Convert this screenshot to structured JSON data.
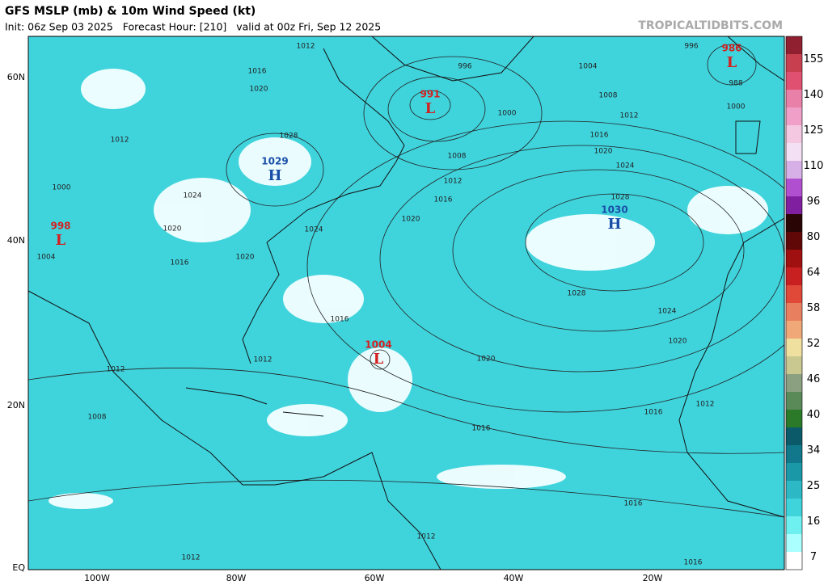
{
  "header": {
    "title": "GFS MSLP (mb) & 10m Wind Speed (kt)",
    "subtitle": "Init: 06z Sep 03 2025   Forecast Hour: [210]   valid at 00z Fri, Sep 12 2025",
    "watermark": "TROPICALTIDBITS.COM"
  },
  "map": {
    "pressure_centers": [
      {
        "symbol": "L",
        "value": "986"
      },
      {
        "symbol": "L",
        "value": "991"
      },
      {
        "symbol": "H",
        "value": "1029"
      },
      {
        "symbol": "H",
        "value": "1030"
      },
      {
        "symbol": "L",
        "value": "998"
      },
      {
        "symbol": "L",
        "value": "1004"
      }
    ],
    "isobar_labels": [
      "1012",
      "996",
      "1004",
      "1008",
      "1000",
      "1012",
      "1016",
      "1020",
      "1024",
      "1028",
      "1016",
      "1012",
      "1008",
      "1020",
      "1024",
      "1028",
      "1020",
      "1016",
      "1012",
      "1000",
      "1020",
      "1016",
      "1024",
      "1004",
      "1028",
      "1024",
      "1020",
      "1016",
      "1012",
      "1020",
      "1012",
      "1008",
      "1016",
      "1016",
      "1012",
      "1016",
      "1012",
      "1012",
      "1016",
      "996",
      "988",
      "1000",
      "1020"
    ],
    "lat_labels": [
      "60N",
      "40N",
      "20N",
      "EQ"
    ],
    "lon_labels": [
      "100W",
      "80W",
      "60W",
      "40W",
      "20W"
    ]
  },
  "colorbar": {
    "labels": [
      7,
      16,
      25,
      34,
      40,
      46,
      52,
      58,
      64,
      80,
      96,
      110,
      125,
      140,
      155
    ]
  }
}
